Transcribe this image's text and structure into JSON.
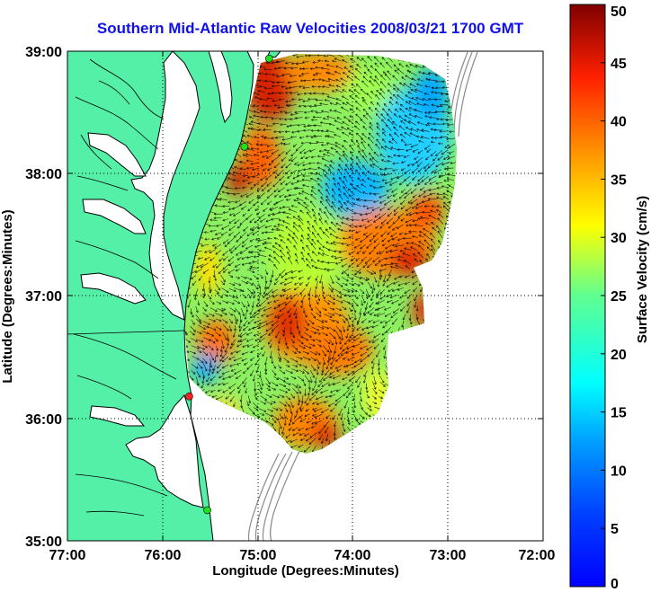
{
  "title": "Southern Mid-Atlantic Raw Velocities 2008/03/21 1700 GMT",
  "map": {
    "xlabel": "Longitude (Degrees:Minutes)",
    "ylabel": "Latitude (Degrees:Minutes)",
    "lon_ticks": [
      "77:00",
      "76:00",
      "75:00",
      "74:00",
      "73:00",
      "72:00"
    ],
    "lat_ticks": [
      "39:00",
      "38:00",
      "37:00",
      "36:00",
      "35:00"
    ],
    "lon_range": [
      -77,
      -72
    ],
    "lat_range": [
      35,
      39
    ],
    "grid": "dotted",
    "colors": {
      "land": "#55f0a8",
      "coast": "#000000",
      "bathymetry": "#8a8a8a",
      "arrows": "#000000"
    },
    "stations": [
      {
        "name": "",
        "color": "green",
        "lon": -74.88,
        "lat": 38.94
      },
      {
        "name": "",
        "color": "green",
        "lon": -75.14,
        "lat": 38.22
      },
      {
        "name": "",
        "color": "red",
        "lon": -75.72,
        "lat": 36.18
      },
      {
        "name": "",
        "color": "green",
        "lon": -75.53,
        "lat": 35.25
      }
    ]
  },
  "colorbar": {
    "label": "Surface Velocity (cm/s)",
    "min": 0,
    "max": 50,
    "ticks": [
      "0",
      "5",
      "10",
      "15",
      "20",
      "25",
      "30",
      "35",
      "40",
      "45",
      "50"
    ],
    "colormap": "jet"
  }
}
